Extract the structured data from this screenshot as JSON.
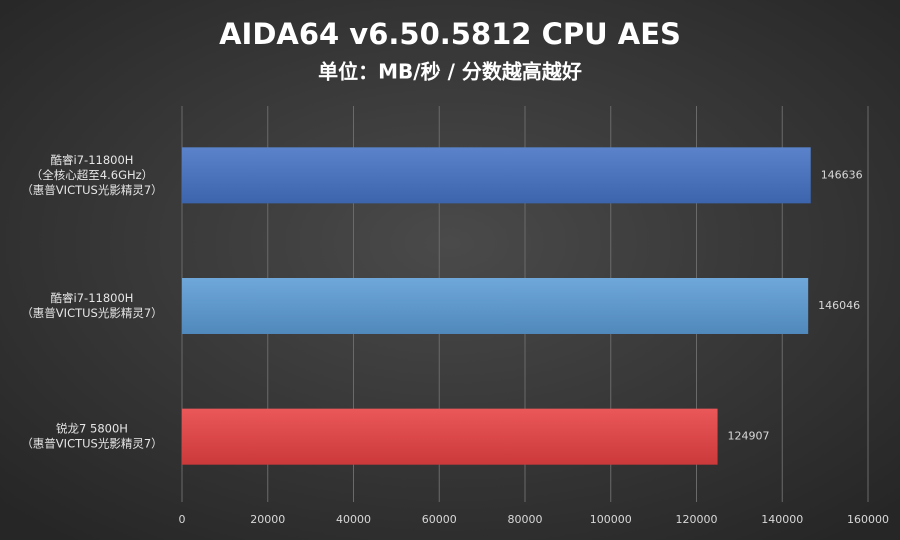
{
  "chart_data": {
    "type": "barh",
    "title": "AIDA64 v6.50.5812 CPU AES",
    "subtitle": "单位：MB/秒 / 分数越高越好",
    "categories": [
      [
        "酷睿i7-11800H",
        "（全核心超至4.6GHz）",
        "（惠普VICTUS光影精灵7）"
      ],
      [
        "酷睿i7-11800H",
        "（惠普VICTUS光影精灵7）"
      ],
      [
        "锐龙7 5800H",
        "（惠普VICTUS光影精灵7）"
      ]
    ],
    "values": [
      146636,
      146046,
      124907
    ],
    "colors": [
      "#4472c4",
      "#5b9bd5",
      "#e84143"
    ],
    "xlim": [
      0,
      160000
    ],
    "xticks": [
      0,
      20000,
      40000,
      60000,
      80000,
      100000,
      120000,
      140000,
      160000
    ],
    "grid": true
  }
}
